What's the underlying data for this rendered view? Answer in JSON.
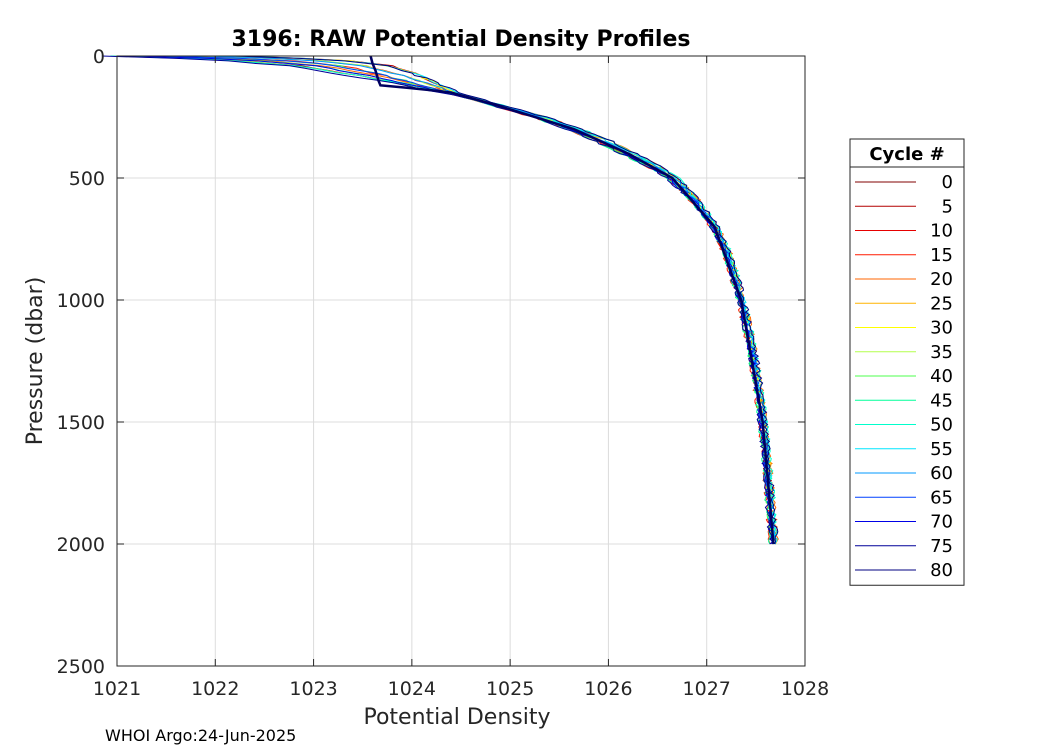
{
  "footer_text": "WHOI Argo:24-Jun-2025",
  "chart_data": {
    "type": "line",
    "title": "3196: RAW Potential Density Profiles",
    "xlabel": "Potential Density",
    "ylabel": "Pressure (dbar)",
    "xlim": [
      1021,
      1028
    ],
    "ylim": [
      0,
      2500
    ],
    "y_reversed": true,
    "xticks": [
      1021,
      1022,
      1023,
      1024,
      1025,
      1026,
      1027,
      1028
    ],
    "yticks": [
      0,
      500,
      1000,
      1500,
      2000,
      2500
    ],
    "grid": true,
    "legend": {
      "title": "Cycle #",
      "placement": "right",
      "entries": [
        {
          "label": "0",
          "color": "#800000"
        },
        {
          "label": "5",
          "color": "#b30000"
        },
        {
          "label": "10",
          "color": "#e60000"
        },
        {
          "label": "15",
          "color": "#ff1a00"
        },
        {
          "label": "20",
          "color": "#ff6600"
        },
        {
          "label": "25",
          "color": "#ffb300"
        },
        {
          "label": "30",
          "color": "#ffff00"
        },
        {
          "label": "35",
          "color": "#b3ff4d"
        },
        {
          "label": "40",
          "color": "#4dff4d"
        },
        {
          "label": "45",
          "color": "#00ff99"
        },
        {
          "label": "50",
          "color": "#00ffcc"
        },
        {
          "label": "55",
          "color": "#00e6ff"
        },
        {
          "label": "60",
          "color": "#0099ff"
        },
        {
          "label": "65",
          "color": "#0040ff"
        },
        {
          "label": "70",
          "color": "#0000e6"
        },
        {
          "label": "75",
          "color": "#000099"
        },
        {
          "label": "80",
          "color": "#000080"
        }
      ]
    },
    "reference_profile": {
      "pressure": [
        0,
        10,
        20,
        40,
        60,
        80,
        100,
        150,
        200,
        250,
        300,
        350,
        400,
        450,
        500,
        600,
        700,
        800,
        900,
        1000,
        1100,
        1200,
        1300,
        1400,
        1500,
        1600,
        1700,
        1800,
        1900,
        2000
      ],
      "density": [
        1021.6,
        1022.3,
        1022.8,
        1023.3,
        1023.55,
        1023.75,
        1023.95,
        1024.4,
        1024.85,
        1025.3,
        1025.65,
        1025.95,
        1026.2,
        1026.45,
        1026.65,
        1026.9,
        1027.08,
        1027.2,
        1027.28,
        1027.35,
        1027.41,
        1027.46,
        1027.5,
        1027.54,
        1027.57,
        1027.6,
        1027.62,
        1027.64,
        1027.66,
        1027.68
      ]
    },
    "highlight_profile": {
      "pressure": [
        0,
        30,
        60,
        100,
        120,
        130,
        140,
        150,
        200,
        300,
        400,
        500,
        700,
        1000,
        1500,
        2000
      ],
      "density": [
        1023.58,
        1023.6,
        1023.63,
        1023.66,
        1023.68,
        1023.95,
        1024.2,
        1024.4,
        1024.85,
        1025.65,
        1026.2,
        1026.65,
        1027.08,
        1027.35,
        1027.57,
        1027.68
      ]
    }
  }
}
